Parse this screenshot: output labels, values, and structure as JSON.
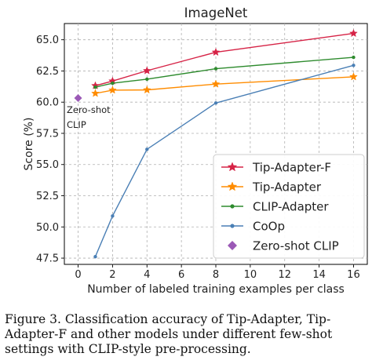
{
  "chart_data": {
    "type": "line",
    "title": "ImageNet",
    "xlabel": "Number of labeled training examples per class",
    "ylabel": "Score (%)",
    "xlim": [
      -0.8,
      16.8
    ],
    "ylim": [
      47.0,
      66.3
    ],
    "xticks": [
      0,
      2,
      4,
      6,
      8,
      10,
      12,
      14,
      16
    ],
    "yticks": [
      47.5,
      50.0,
      52.5,
      55.0,
      57.5,
      60.0,
      62.5,
      65.0
    ],
    "grid": true,
    "legend_position": "lower-right",
    "series": [
      {
        "name": "Tip-Adapter-F",
        "color": "#d62346",
        "marker": "star",
        "x": [
          1,
          2,
          4,
          8,
          16
        ],
        "y": [
          61.32,
          61.69,
          62.52,
          64.0,
          65.51
        ]
      },
      {
        "name": "Tip-Adapter",
        "color": "#ff8c00",
        "marker": "star",
        "x": [
          1,
          2,
          4,
          8,
          16
        ],
        "y": [
          60.7,
          60.96,
          60.98,
          61.45,
          62.03
        ]
      },
      {
        "name": "CLIP-Adapter",
        "color": "#2e8b2e",
        "marker": "dot",
        "x": [
          1,
          2,
          4,
          8,
          16
        ],
        "y": [
          61.2,
          61.52,
          61.84,
          62.68,
          63.59
        ]
      },
      {
        "name": "CoOp",
        "color": "#4a7fb5",
        "marker": "dot",
        "x": [
          1,
          2,
          4,
          8,
          16
        ],
        "y": [
          47.62,
          50.88,
          56.22,
          59.93,
          62.95
        ]
      },
      {
        "name": "Zero-shot CLIP",
        "color": "#9b59b6",
        "marker": "diamond",
        "x": [
          0
        ],
        "y": [
          60.33
        ]
      }
    ],
    "annotations": [
      {
        "text_lines": [
          "Zero-shot",
          "CLIP"
        ],
        "x": 0,
        "y": 60.33
      }
    ]
  },
  "caption": "Figure 3. Classification accuracy of Tip-Adapter, Tip-Adapter-F and other models under different few-shot settings with CLIP-style pre-processing."
}
